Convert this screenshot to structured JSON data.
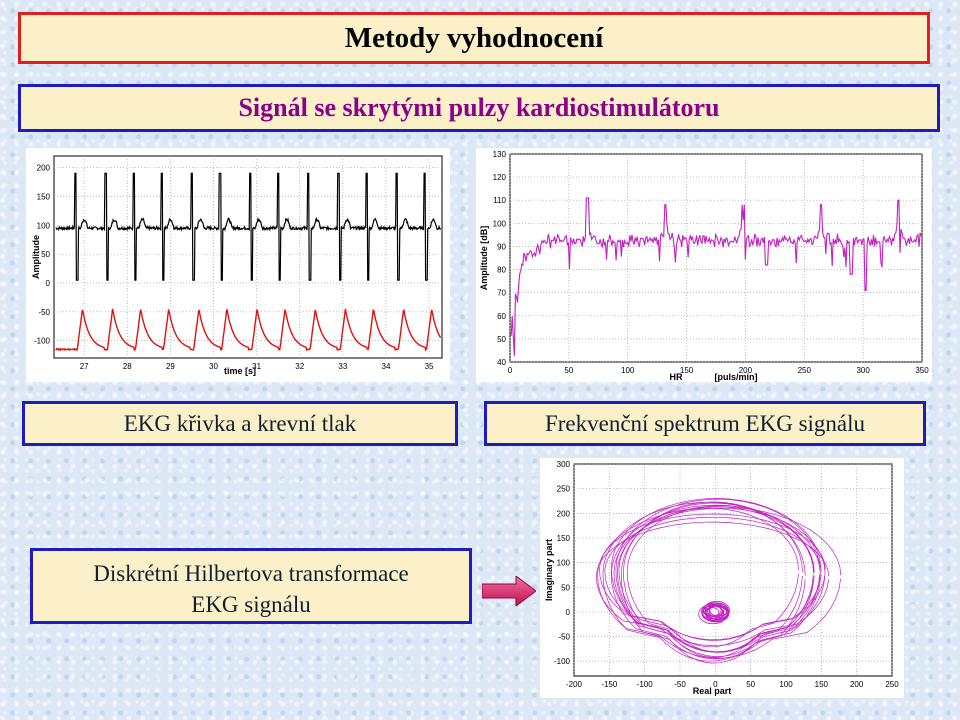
{
  "slide": {
    "title": "Metody vyhodnocení",
    "subtitle": "Signál se skrytými pulzy kardiostimulátoru",
    "captions": {
      "ekg": "EKG křivka a krevní tlak",
      "spectrum": "Frekvenční spektrum EKG signálu",
      "hilbert_line1": "Diskrétní Hilbertova transformace",
      "hilbert_line2": "EKG signálu"
    },
    "arrow_icon": "right-arrow-icon",
    "colors": {
      "title_border": "#e02020",
      "subtitle_border": "#1c1cc0",
      "subtitle_text": "#8b008b",
      "box_fill": "#fbf0c8",
      "magenta": "#c020c0",
      "red": "#e01010"
    }
  },
  "chart_data": [
    {
      "type": "line",
      "xlabel": "time [s]",
      "ylabel": "Amplitude",
      "xlim": [
        26.3,
        35.3
      ],
      "ylim": [
        -130,
        220
      ],
      "x_ticks": [
        "27",
        "28",
        "29",
        "30",
        "31",
        "32",
        "33",
        "34",
        "35"
      ],
      "y_ticks": [
        "200",
        "150",
        "100",
        "50",
        "0",
        "-50",
        "-100"
      ],
      "beats_x": [
        26.8,
        27.5,
        28.15,
        28.8,
        29.5,
        30.15,
        30.85,
        31.5,
        32.2,
        32.9,
        33.55,
        34.25,
        34.9
      ],
      "series": [
        {
          "baseline": 95,
          "spike_peak": 190,
          "spike_min": 5,
          "color": "#000000"
        },
        {
          "baseline": -115,
          "wave_peak": -45,
          "color": "#e01010"
        }
      ],
      "grid": true
    },
    {
      "type": "line",
      "xlabel": "HR",
      "xunit": "[puls/min]",
      "ylabel": "Amplitude [dB]",
      "xlim": [
        0,
        350
      ],
      "ylim": [
        40,
        130
      ],
      "x_ticks": [
        "0",
        "50",
        "100",
        "150",
        "200",
        "250",
        "300",
        "350"
      ],
      "y_ticks": [
        "130",
        "120",
        "110",
        "100",
        "90",
        "80",
        "70",
        "60",
        "50",
        "40"
      ],
      "peaks": [
        {
          "x": 1,
          "y": 84
        },
        {
          "x": 66,
          "y": 111
        },
        {
          "x": 132,
          "y": 108
        },
        {
          "x": 198,
          "y": 108
        },
        {
          "x": 264,
          "y": 108
        },
        {
          "x": 330,
          "y": 110
        }
      ],
      "noise_level": [
        91,
        94
      ],
      "dips": [
        {
          "x": 3,
          "y": 51
        },
        {
          "x": 218,
          "y": 82
        },
        {
          "x": 290,
          "y": 78
        },
        {
          "x": 302,
          "y": 71
        }
      ],
      "color": "#c020c0",
      "grid": true
    },
    {
      "type": "line",
      "xlabel": "Real part",
      "ylabel": "Imaginary part",
      "xlim": [
        -200,
        250
      ],
      "ylim": [
        -130,
        300
      ],
      "x_ticks": [
        "-200",
        "-150",
        "-100",
        "-50",
        "0",
        "50",
        "100",
        "150",
        "200",
        "250"
      ],
      "y_ticks": [
        "300",
        "250",
        "200",
        "150",
        "100",
        "50",
        "0",
        "-50",
        "-100"
      ],
      "loop": {
        "center": [
          0,
          20
        ],
        "outer_radius_x": 170,
        "outer_radius_y": 150,
        "inner_radius": 15
      },
      "color": "#c020c0",
      "grid": true
    }
  ]
}
